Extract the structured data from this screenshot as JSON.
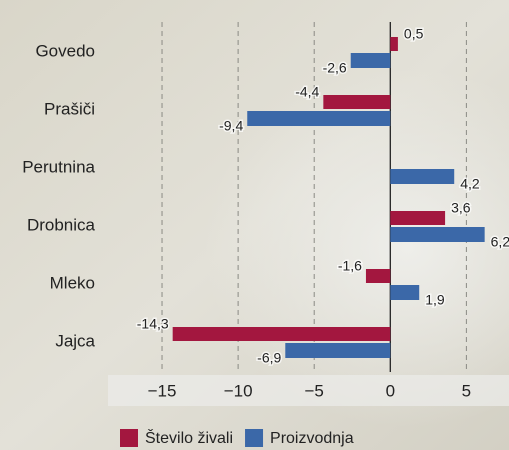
{
  "chart_data": {
    "type": "bar",
    "orientation": "horizontal",
    "categories": [
      "Govedo",
      "Prašiči",
      "Perutnina",
      "Drobnica",
      "Mleko",
      "Jajca"
    ],
    "series": [
      {
        "name": "Število živali",
        "color": "#a3173f",
        "values": [
          0.5,
          -4.4,
          null,
          3.6,
          -1.6,
          -14.3
        ],
        "value_labels": [
          "0,5",
          "-4,4",
          null,
          "3,6",
          "-1,6",
          "-14,3"
        ]
      },
      {
        "name": "Proizvodnja",
        "color": "#3b68a8",
        "values": [
          -2.6,
          -9.4,
          4.2,
          6.2,
          1.9,
          -6.9
        ],
        "value_labels": [
          "-2,6",
          "-9,4",
          "4,2",
          "6,2",
          "1,9",
          "-6,9"
        ]
      }
    ],
    "xlim": [
      -18.55,
      7.8
    ],
    "xticks": [
      {
        "value": -15,
        "label": "−15"
      },
      {
        "value": -10,
        "label": "−10"
      },
      {
        "value": -5,
        "label": "−5"
      },
      0,
      5
    ],
    "grid": true,
    "legend": "bottom"
  }
}
